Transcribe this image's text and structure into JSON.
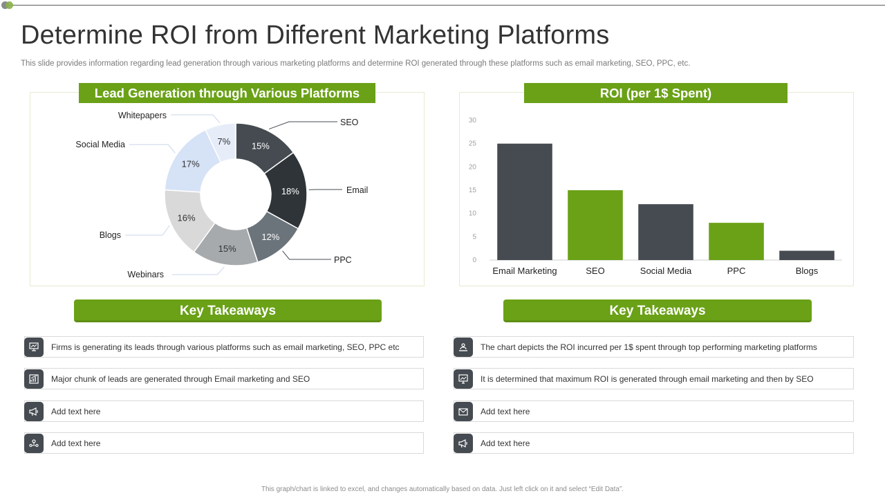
{
  "title": "Determine ROI from Different Marketing Platforms",
  "subtitle": "This slide provides information regarding lead generation through various marketing platforms and determine ROI generated through these platforms such as email marketing, SEO, PPC, etc.",
  "footer": "This graph/chart is linked to excel, and changes automatically based on data. Just left click on it and select “Edit Data”.",
  "colors": {
    "accent": "#6aa117",
    "dark": "#454b51"
  },
  "chart_data": [
    {
      "type": "pie",
      "title": "Lead Generation through  Various  Platforms",
      "donut": true,
      "slices": [
        {
          "label": "SEO",
          "value": 15,
          "display": "15%",
          "color": "#454b51"
        },
        {
          "label": "Email",
          "value": 18,
          "display": "18%",
          "color": "#2f3438"
        },
        {
          "label": "PPC",
          "value": 12,
          "display": "12%",
          "color": "#6c747b"
        },
        {
          "label": "Webinars",
          "value": 15,
          "display": "15%",
          "color": "#a7aaad"
        },
        {
          "label": "Blogs",
          "value": 16,
          "display": "16%",
          "color": "#d9d9d9"
        },
        {
          "label": "Social Media",
          "value": 17,
          "display": "17%",
          "color": "#d6e2f6"
        },
        {
          "label": "Whitepapers",
          "value": 7,
          "display": "7%",
          "color": "#e6edf9"
        }
      ]
    },
    {
      "type": "bar",
      "title": "ROI (per 1$ Spent)",
      "categories": [
        "Email Marketing",
        "SEO",
        "Social Media",
        "PPC",
        "Blogs"
      ],
      "values": [
        25,
        15,
        12,
        8,
        2
      ],
      "colors": [
        "#454b51",
        "#6aa117",
        "#454b51",
        "#6aa117",
        "#454b51"
      ],
      "yticks": [
        0,
        5,
        10,
        15,
        20,
        25,
        30
      ],
      "ylim": [
        0,
        30
      ],
      "grid": false
    }
  ],
  "takeaways_left": {
    "heading": "Key Takeaways",
    "items": [
      {
        "icon": "presentation-board-icon",
        "text": "Firms is generating its leads through various platforms such as email marketing, SEO, PPC etc"
      },
      {
        "icon": "growth-chart-icon",
        "text": "Major chunk of leads are generated through Email marketing and SEO"
      },
      {
        "icon": "megaphone-icon",
        "text": "Add text here"
      },
      {
        "icon": "team-network-icon",
        "text": "Add text here"
      }
    ]
  },
  "takeaways_right": {
    "heading": "Key Takeaways",
    "items": [
      {
        "icon": "laptop-user-icon",
        "text": "The chart depicts the ROI incurred per 1$ spent through top performing marketing platforms"
      },
      {
        "icon": "analytics-screen-icon",
        "text": "It is determined that maximum ROI is generated through email marketing and then by SEO"
      },
      {
        "icon": "email-icon",
        "text": "Add text here"
      },
      {
        "icon": "megaphone-icon",
        "text": "Add text here"
      }
    ]
  }
}
